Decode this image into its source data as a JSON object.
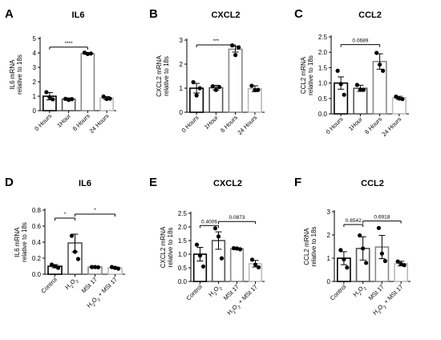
{
  "chart_data": [
    {
      "panel": "A",
      "type": "bar",
      "title": "IL6",
      "ylabel": [
        "IL6 mRNA",
        "relative to 18s"
      ],
      "categories": [
        "0 Hours",
        "1Hour",
        "6 Hours",
        "24 Hours"
      ],
      "yticks": [
        "0",
        "1",
        "2",
        "3",
        "4",
        "5"
      ],
      "ylim": [
        0,
        5
      ],
      "values": [
        1.0,
        0.8,
        3.95,
        0.87
      ],
      "errors": [
        0.25,
        0.08,
        0.05,
        0.1
      ],
      "points": [
        [
          1.28,
          0.93,
          0.78
        ],
        [
          0.82,
          0.74,
          0.8
        ],
        [
          4.02,
          3.93,
          3.96
        ],
        [
          0.98,
          0.81,
          0.83
        ]
      ],
      "colors": [
        "#000000",
        "#555555",
        "#888888",
        "#bbbbbb"
      ],
      "significance": [
        {
          "from": 0,
          "to": 2,
          "label": "****",
          "y": 4.4
        }
      ]
    },
    {
      "panel": "B",
      "type": "bar",
      "title": "CXCL2",
      "ylabel": [
        "CXCL2 mRNA",
        "relative to 18s"
      ],
      "categories": [
        "0 Hours",
        "1Hour",
        "6 Hours",
        "24 Hours"
      ],
      "yticks": [
        "0",
        "1",
        "2",
        "3"
      ],
      "ylim": [
        0,
        3
      ],
      "values": [
        1.0,
        1.02,
        2.62,
        0.98
      ],
      "errors": [
        0.2,
        0.1,
        0.12,
        0.12
      ],
      "points": [
        [
          1.25,
          0.7,
          1.0
        ],
        [
          1.08,
          0.93,
          1.05
        ],
        [
          2.78,
          2.38,
          2.7
        ],
        [
          1.1,
          0.92,
          0.93
        ]
      ],
      "colors": [
        "#000000",
        "#555555",
        "#888888",
        "#bbbbbb"
      ],
      "significance": [
        {
          "from": 0,
          "to": 2,
          "label": "***",
          "y": 2.8
        }
      ]
    },
    {
      "panel": "C",
      "type": "bar",
      "title": "CCL2",
      "ylabel": [
        "CCL2 mRNA",
        "relative to 18s"
      ],
      "categories": [
        "0 Hours",
        "1Hour",
        "6 Hours",
        "24 Hours"
      ],
      "yticks": [
        "0.0",
        "0.5",
        "1.0",
        "1.5",
        "2.0",
        "2.5"
      ],
      "ylim": [
        0,
        2.5
      ],
      "values": [
        1.0,
        0.83,
        1.7,
        0.52
      ],
      "errors": [
        0.2,
        0.1,
        0.25,
        0.05
      ],
      "points": [
        [
          1.4,
          0.97,
          0.62
        ],
        [
          0.94,
          0.78,
          0.78
        ],
        [
          1.98,
          1.6,
          1.4
        ],
        [
          0.56,
          0.5,
          0.48
        ]
      ],
      "colors": [
        "#000000",
        "#555555",
        "#888888",
        "#bbbbbb"
      ],
      "significance": [
        {
          "from": 0,
          "to": 2,
          "label": "0.0689",
          "y": 2.25
        }
      ]
    },
    {
      "panel": "D",
      "type": "bar",
      "title": "IL6",
      "ylabel": [
        "IL6 mRNA",
        "relative to 18s"
      ],
      "categories": [
        "Control",
        "H2O2",
        "MSt 17",
        "H2O2 + MSt 17"
      ],
      "yticks": [
        "0.0",
        "0.2",
        "0.4",
        "0.6",
        "0.8"
      ],
      "ylim": [
        0,
        0.8
      ],
      "values": [
        0.1,
        0.39,
        0.09,
        0.08
      ],
      "errors": [
        0.02,
        0.11,
        0.005,
        0.01
      ],
      "points": [
        [
          0.12,
          0.1,
          0.08
        ],
        [
          0.48,
          0.28,
          0.19
        ],
        [
          0.09,
          0.09,
          0.087
        ],
        [
          0.09,
          0.08,
          0.07
        ]
      ],
      "colors": [
        "#000000",
        "#555555",
        "#888888",
        "#bbbbbb"
      ],
      "significance": [
        {
          "from": 0,
          "to": 1,
          "label": "*",
          "y": 0.7
        },
        {
          "from": 1,
          "to": 3,
          "label": "*",
          "y": 0.75
        }
      ]
    },
    {
      "panel": "E",
      "type": "bar",
      "title": "CXCL2",
      "ylabel": [
        "CXCL2 mRNA",
        "relative to 18s"
      ],
      "categories": [
        "Control",
        "H2O2",
        "MSt 17",
        "H2O2 + MSt 17"
      ],
      "yticks": [
        "0.0",
        "0.5",
        "1.0",
        "1.5",
        "2.0",
        "2.5"
      ],
      "ylim": [
        0,
        2.5
      ],
      "values": [
        1.0,
        1.5,
        1.2,
        0.65
      ],
      "errors": [
        0.25,
        0.32,
        0.03,
        0.12
      ],
      "points": [
        [
          1.35,
          0.95,
          0.55
        ],
        [
          1.95,
          1.65,
          0.85
        ],
        [
          1.22,
          1.21,
          1.18
        ],
        [
          0.8,
          0.62,
          0.52
        ]
      ],
      "colors": [
        "#000000",
        "#555555",
        "#888888",
        "#bbbbbb"
      ],
      "significance": [
        {
          "from": 0,
          "to": 1,
          "label": "0.4006",
          "y": 2.05
        },
        {
          "from": 1,
          "to": 3,
          "label": "0.0873",
          "y": 2.2
        }
      ]
    },
    {
      "panel": "F",
      "type": "bar",
      "title": "CCL2",
      "ylabel": [
        "CCL2 mRNA",
        "relative to 18s"
      ],
      "categories": [
        "Control",
        "H2O2",
        "MSt 17",
        "H2O2 + MSt 17"
      ],
      "yticks": [
        "0",
        "1",
        "2",
        "3"
      ],
      "ylim": [
        0,
        3
      ],
      "values": [
        1.0,
        1.42,
        1.48,
        0.77
      ],
      "errors": [
        0.28,
        0.5,
        0.5,
        0.1
      ],
      "points": [
        [
          1.35,
          0.95,
          0.6
        ],
        [
          1.98,
          1.42,
          0.8
        ],
        [
          2.3,
          1.2,
          0.88
        ],
        [
          0.86,
          0.75,
          0.7
        ]
      ],
      "colors": [
        "#000000",
        "#555555",
        "#888888",
        "#bbbbbb"
      ],
      "significance": [
        {
          "from": 0,
          "to": 1,
          "label": "0.8542",
          "y": 2.45
        },
        {
          "from": 1,
          "to": 3,
          "label": "0.6918",
          "y": 2.6
        }
      ]
    }
  ]
}
